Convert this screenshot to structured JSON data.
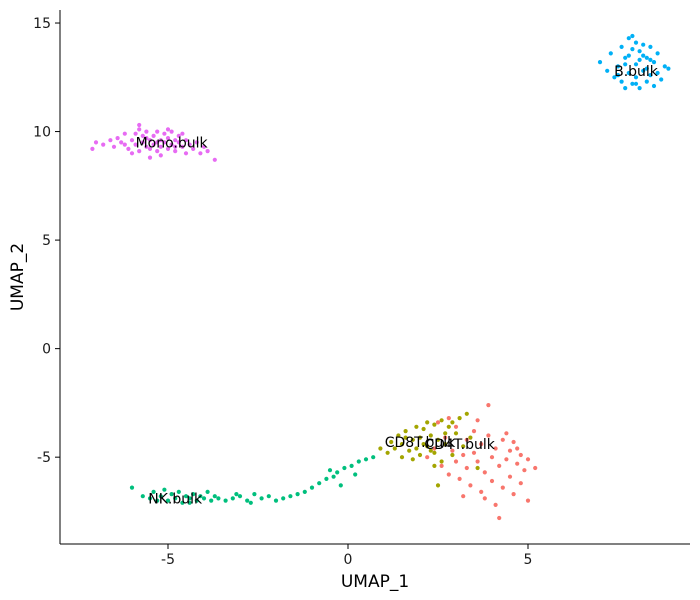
{
  "chart_data": {
    "type": "scatter",
    "title": "",
    "xlabel": "UMAP_1",
    "ylabel": "UMAP_2",
    "xlim": [
      -8.0,
      9.5
    ],
    "ylim": [
      -9.0,
      15.6
    ],
    "xticks": [
      -5,
      0,
      5
    ],
    "xtick_labels": [
      "-5",
      "0",
      "5"
    ],
    "yticks": [
      -5,
      0,
      5,
      10,
      15
    ],
    "ytick_labels": [
      "-5",
      "0",
      "5",
      "10",
      "15"
    ],
    "grid": false,
    "legend": "none",
    "series": [
      {
        "name": "Mono.bulk",
        "color": "#E76BF3",
        "label_at": [
          -4.9,
          9.5
        ],
        "points": [
          [
            -7.0,
            9.5
          ],
          [
            -7.1,
            9.2
          ],
          [
            -6.8,
            9.4
          ],
          [
            -6.6,
            9.6
          ],
          [
            -6.5,
            9.3
          ],
          [
            -6.4,
            9.7
          ],
          [
            -6.3,
            9.5
          ],
          [
            -6.2,
            9.9
          ],
          [
            -6.1,
            9.2
          ],
          [
            -6.0,
            9.6
          ],
          [
            -5.9,
            9.4
          ],
          [
            -5.9,
            9.9
          ],
          [
            -5.8,
            10.1
          ],
          [
            -5.8,
            9.1
          ],
          [
            -5.7,
            9.5
          ],
          [
            -5.7,
            9.8
          ],
          [
            -5.6,
            9.3
          ],
          [
            -5.6,
            10.0
          ],
          [
            -5.5,
            9.6
          ],
          [
            -5.5,
            9.2
          ],
          [
            -5.4,
            9.8
          ],
          [
            -5.4,
            9.4
          ],
          [
            -5.3,
            10.0
          ],
          [
            -5.3,
            9.1
          ],
          [
            -5.2,
            9.6
          ],
          [
            -5.2,
            9.3
          ],
          [
            -5.1,
            9.9
          ],
          [
            -5.1,
            9.5
          ],
          [
            -5.0,
            9.2
          ],
          [
            -5.0,
            9.7
          ],
          [
            -4.9,
            9.4
          ],
          [
            -4.9,
            10.0
          ],
          [
            -4.8,
            9.6
          ],
          [
            -4.8,
            9.1
          ],
          [
            -4.7,
            9.5
          ],
          [
            -4.7,
            9.8
          ],
          [
            -4.6,
            9.3
          ],
          [
            -4.5,
            9.6
          ],
          [
            -4.5,
            9.0
          ],
          [
            -4.4,
            9.4
          ],
          [
            -4.3,
            9.2
          ],
          [
            -4.2,
            9.5
          ],
          [
            -4.1,
            9.0
          ],
          [
            -4.0,
            9.3
          ],
          [
            -3.9,
            9.1
          ],
          [
            -5.5,
            8.8
          ],
          [
            -5.2,
            8.9
          ],
          [
            -6.0,
            9.0
          ],
          [
            -3.7,
            8.7
          ],
          [
            -5.8,
            10.3
          ],
          [
            -5.0,
            10.1
          ],
          [
            -4.6,
            9.9
          ],
          [
            -6.2,
            9.4
          ],
          [
            -5.6,
            9.7
          ],
          [
            -5.3,
            9.5
          ],
          [
            -4.8,
            9.3
          ]
        ]
      },
      {
        "name": "B.bulk",
        "color": "#00B0F6",
        "label_at": [
          8.0,
          12.8
        ],
        "points": [
          [
            7.0,
            13.2
          ],
          [
            7.2,
            12.8
          ],
          [
            7.3,
            13.6
          ],
          [
            7.4,
            12.5
          ],
          [
            7.5,
            13.0
          ],
          [
            7.6,
            13.9
          ],
          [
            7.6,
            12.3
          ],
          [
            7.7,
            13.4
          ],
          [
            7.7,
            12.0
          ],
          [
            7.8,
            14.3
          ],
          [
            7.8,
            12.7
          ],
          [
            7.9,
            13.8
          ],
          [
            7.9,
            12.2
          ],
          [
            8.0,
            14.1
          ],
          [
            8.0,
            13.1
          ],
          [
            8.0,
            12.5
          ],
          [
            8.1,
            13.7
          ],
          [
            8.1,
            12.0
          ],
          [
            8.2,
            14.0
          ],
          [
            8.2,
            12.8
          ],
          [
            8.3,
            13.4
          ],
          [
            8.3,
            12.3
          ],
          [
            8.4,
            13.9
          ],
          [
            8.4,
            12.6
          ],
          [
            8.5,
            13.2
          ],
          [
            8.5,
            12.1
          ],
          [
            8.6,
            13.6
          ],
          [
            8.6,
            12.7
          ],
          [
            8.7,
            12.4
          ],
          [
            8.8,
            13.0
          ],
          [
            8.9,
            12.9
          ],
          [
            7.5,
            12.6
          ],
          [
            7.9,
            14.4
          ],
          [
            8.1,
            13.3
          ],
          [
            7.7,
            13.1
          ],
          [
            8.3,
            12.9
          ],
          [
            8.0,
            12.2
          ],
          [
            7.8,
            13.5
          ],
          [
            8.4,
            13.3
          ],
          [
            8.2,
            13.5
          ]
        ]
      },
      {
        "name": "NK.bulk",
        "color": "#00BF7D",
        "label_at": [
          -4.8,
          -6.9
        ],
        "points": [
          [
            -6.0,
            -6.4
          ],
          [
            -5.7,
            -6.8
          ],
          [
            -5.5,
            -6.9
          ],
          [
            -5.4,
            -6.6
          ],
          [
            -5.3,
            -7.0
          ],
          [
            -5.2,
            -6.8
          ],
          [
            -5.1,
            -6.5
          ],
          [
            -5.0,
            -7.0
          ],
          [
            -4.9,
            -6.7
          ],
          [
            -4.8,
            -6.9
          ],
          [
            -4.7,
            -6.6
          ],
          [
            -4.6,
            -7.1
          ],
          [
            -4.5,
            -6.8
          ],
          [
            -4.4,
            -6.9
          ],
          [
            -4.3,
            -6.7
          ],
          [
            -4.2,
            -7.0
          ],
          [
            -4.1,
            -6.8
          ],
          [
            -4.0,
            -6.9
          ],
          [
            -3.9,
            -6.6
          ],
          [
            -3.8,
            -7.0
          ],
          [
            -3.7,
            -6.8
          ],
          [
            -3.6,
            -6.9
          ],
          [
            -3.4,
            -7.0
          ],
          [
            -3.2,
            -6.9
          ],
          [
            -3.0,
            -6.8
          ],
          [
            -2.8,
            -7.0
          ],
          [
            -2.6,
            -6.7
          ],
          [
            -2.4,
            -6.9
          ],
          [
            -2.2,
            -6.8
          ],
          [
            -2.0,
            -7.0
          ],
          [
            -1.8,
            -6.9
          ],
          [
            -1.6,
            -6.8
          ],
          [
            -1.4,
            -6.7
          ],
          [
            -1.2,
            -6.6
          ],
          [
            -1.0,
            -6.4
          ],
          [
            -0.8,
            -6.2
          ],
          [
            -0.6,
            -6.0
          ],
          [
            -0.4,
            -5.9
          ],
          [
            -0.3,
            -5.7
          ],
          [
            -0.1,
            -5.5
          ],
          [
            0.1,
            -5.4
          ],
          [
            0.3,
            -5.2
          ],
          [
            0.5,
            -5.1
          ],
          [
            0.7,
            -5.0
          ],
          [
            -0.2,
            -6.3
          ],
          [
            0.2,
            -5.8
          ],
          [
            -0.5,
            -5.6
          ],
          [
            -2.7,
            -7.1
          ],
          [
            -3.1,
            -6.7
          ],
          [
            -4.4,
            -7.1
          ]
        ]
      },
      {
        "name": "CD8T.bulk",
        "color": "#A3A500",
        "label_at": [
          2.0,
          -4.3
        ],
        "points": [
          [
            0.9,
            -4.6
          ],
          [
            1.1,
            -4.8
          ],
          [
            1.2,
            -4.3
          ],
          [
            1.3,
            -4.6
          ],
          [
            1.4,
            -4.0
          ],
          [
            1.5,
            -5.0
          ],
          [
            1.5,
            -4.4
          ],
          [
            1.6,
            -3.8
          ],
          [
            1.7,
            -4.7
          ],
          [
            1.8,
            -4.2
          ],
          [
            1.9,
            -3.6
          ],
          [
            2.0,
            -4.9
          ],
          [
            2.0,
            -4.1
          ],
          [
            2.1,
            -3.7
          ],
          [
            2.2,
            -4.5
          ],
          [
            2.2,
            -3.4
          ],
          [
            2.3,
            -4.0
          ],
          [
            2.4,
            -4.8
          ],
          [
            2.4,
            -3.5
          ],
          [
            2.5,
            -4.2
          ],
          [
            2.6,
            -3.3
          ],
          [
            2.6,
            -5.2
          ],
          [
            2.7,
            -4.4
          ],
          [
            2.8,
            -3.6
          ],
          [
            2.9,
            -4.9
          ],
          [
            3.0,
            -3.9
          ],
          [
            3.1,
            -3.2
          ],
          [
            3.2,
            -4.5
          ],
          [
            3.4,
            -4.1
          ],
          [
            3.6,
            -5.5
          ],
          [
            1.8,
            -5.1
          ],
          [
            2.5,
            -6.3
          ],
          [
            2.1,
            -4.4
          ],
          [
            1.6,
            -4.1
          ],
          [
            2.9,
            -3.4
          ],
          [
            2.3,
            -4.7
          ],
          [
            1.9,
            -4.6
          ],
          [
            2.7,
            -3.9
          ],
          [
            3.3,
            -3.0
          ],
          [
            2.4,
            -5.4
          ]
        ]
      },
      {
        "name": "CD4T.bulk",
        "color": "#F8766D",
        "label_at": [
          3.1,
          -4.4
        ],
        "points": [
          [
            2.2,
            -5.0
          ],
          [
            2.4,
            -4.6
          ],
          [
            2.6,
            -5.4
          ],
          [
            2.7,
            -4.1
          ],
          [
            2.8,
            -5.8
          ],
          [
            2.9,
            -4.7
          ],
          [
            3.0,
            -5.2
          ],
          [
            3.0,
            -3.6
          ],
          [
            3.1,
            -6.0
          ],
          [
            3.2,
            -4.9
          ],
          [
            3.3,
            -5.5
          ],
          [
            3.3,
            -4.2
          ],
          [
            3.4,
            -6.3
          ],
          [
            3.5,
            -4.8
          ],
          [
            3.5,
            -3.8
          ],
          [
            3.6,
            -5.2
          ],
          [
            3.7,
            -4.4
          ],
          [
            3.7,
            -6.6
          ],
          [
            3.8,
            -5.7
          ],
          [
            3.9,
            -4.0
          ],
          [
            3.9,
            -2.6
          ],
          [
            4.0,
            -5.0
          ],
          [
            4.0,
            -6.1
          ],
          [
            4.1,
            -4.6
          ],
          [
            4.1,
            -7.2
          ],
          [
            4.2,
            -5.4
          ],
          [
            4.2,
            -7.8
          ],
          [
            4.3,
            -4.2
          ],
          [
            4.3,
            -6.4
          ],
          [
            4.4,
            -5.1
          ],
          [
            4.5,
            -4.7
          ],
          [
            4.5,
            -5.9
          ],
          [
            4.6,
            -4.3
          ],
          [
            4.6,
            -6.7
          ],
          [
            4.7,
            -5.3
          ],
          [
            4.8,
            -4.9
          ],
          [
            4.8,
            -6.2
          ],
          [
            4.9,
            -5.6
          ],
          [
            5.0,
            -7.0
          ],
          [
            5.0,
            -5.1
          ],
          [
            5.2,
            -5.5
          ],
          [
            2.5,
            -3.4
          ],
          [
            2.8,
            -3.2
          ],
          [
            3.6,
            -3.3
          ],
          [
            3.2,
            -6.8
          ],
          [
            4.4,
            -3.9
          ],
          [
            3.8,
            -6.9
          ],
          [
            4.7,
            -4.6
          ]
        ]
      }
    ]
  }
}
